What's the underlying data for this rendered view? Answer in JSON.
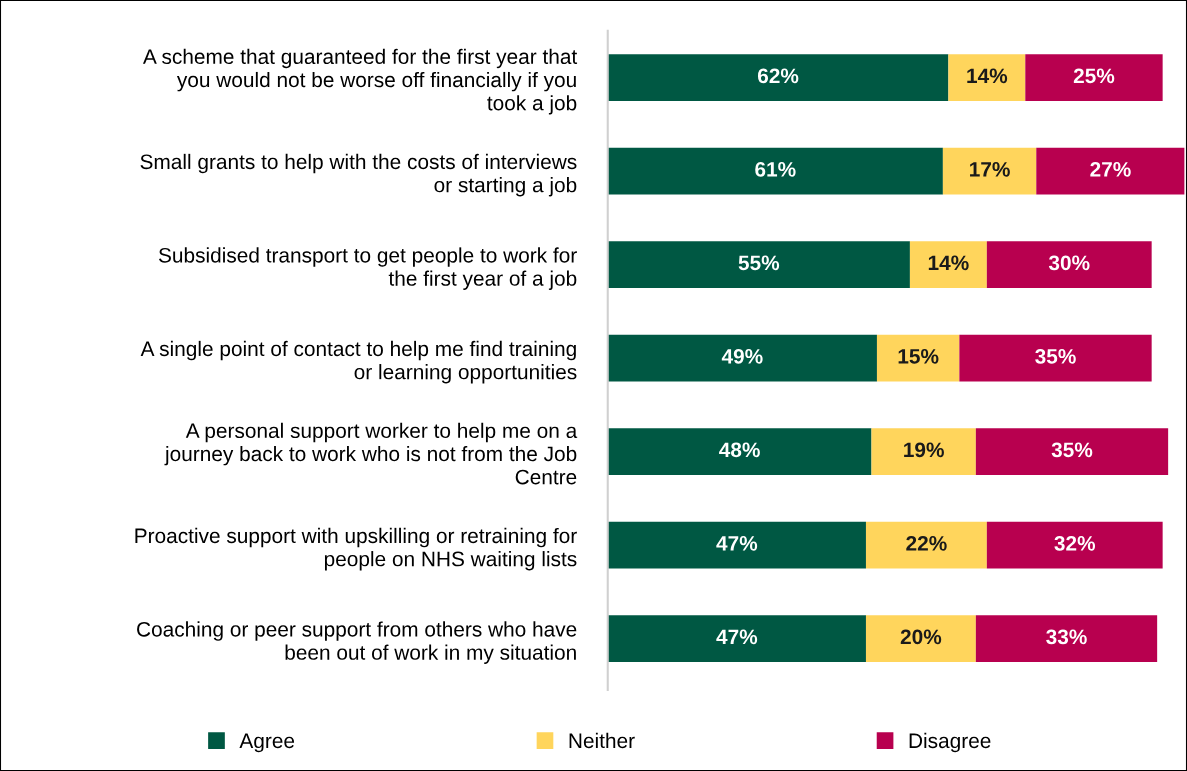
{
  "chart_data": {
    "type": "bar",
    "orientation": "horizontal",
    "stacked": true,
    "legend": "bottom",
    "grid": false,
    "tick_labels": "y",
    "categories": [
      "A scheme that guaranteed for the first year that\nyou would not be worse off financially if you\ntook a job",
      "Small grants to help with the costs of interviews\nor starting a job",
      "Subsidised transport to get people to work for\nthe first year of a job",
      "A single point of contact to help me find training\nor learning opportunities",
      "A personal support worker to help me on a\njourney back to work who is not from the Job\nCentre",
      "Proactive support with upskilling or retraining for\npeople on NHS waiting lists",
      "Coaching or peer support from others who have\nbeen out of work in my situation"
    ],
    "series": [
      {
        "name": "Agree",
        "color": "#005843",
        "values": [
          62,
          61,
          55,
          49,
          48,
          47,
          47
        ],
        "value_labels": [
          "62%",
          "61%",
          "55%",
          "49%",
          "48%",
          "47%",
          "47%"
        ]
      },
      {
        "name": "Neither",
        "color": "#ffd55c",
        "values": [
          14,
          17,
          14,
          15,
          19,
          22,
          20
        ],
        "value_labels": [
          "14%",
          "17%",
          "14%",
          "15%",
          "19%",
          "22%",
          "20%"
        ]
      },
      {
        "name": "Disagree",
        "color": "#b8004f",
        "values": [
          25,
          27,
          30,
          35,
          35,
          32,
          33
        ],
        "value_labels": [
          "25%",
          "27%",
          "30%",
          "35%",
          "35%",
          "32%",
          "33%"
        ]
      }
    ]
  }
}
